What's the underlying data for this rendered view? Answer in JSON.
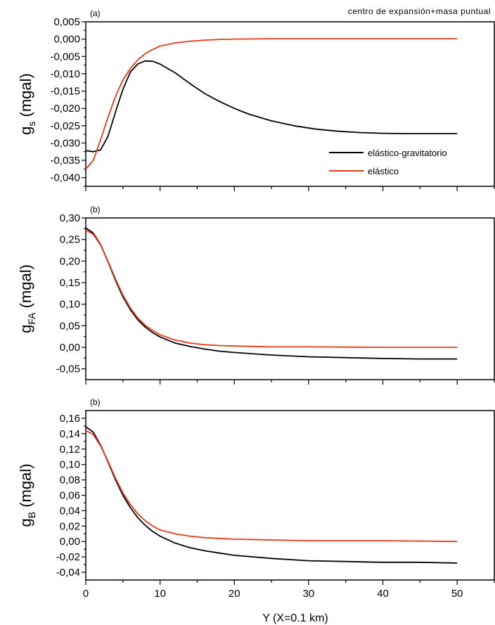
{
  "figure": {
    "annotation": "centro de expansión+masa puntual",
    "xlabel": "Y (X=0.1 km)"
  },
  "colors": {
    "elastico_gravitatorio": "#000000",
    "elastico": "#e8391a"
  },
  "chart_data": [
    {
      "type": "line",
      "panel_label": "(a)",
      "ylabel_main": "g",
      "ylabel_sub": "s",
      "ylabel_unit": " (mgal)",
      "xlim": [
        0,
        55
      ],
      "ylim": [
        -0.0425,
        0.005
      ],
      "x_ticks": [
        0,
        10,
        20,
        30,
        40,
        50
      ],
      "y_ticks": [
        -0.04,
        -0.035,
        -0.03,
        -0.025,
        -0.02,
        -0.015,
        -0.01,
        -0.005,
        0,
        0.005
      ],
      "y_tick_labels": [
        "-0,040",
        "-0,035",
        "-0,030",
        "-0,025",
        "-0,020",
        "-0,015",
        "-0,010",
        "-0,005",
        "0,000",
        "0,005"
      ],
      "legend": {
        "position": "bottom-right",
        "entries": [
          "elástico-gravitatorio",
          "elástico"
        ]
      },
      "series": [
        {
          "name": "elástico-gravitatorio",
          "color": "#000000",
          "x": [
            0,
            1,
            2,
            3,
            4,
            5,
            6,
            7,
            8,
            9,
            10,
            12,
            14,
            16,
            18,
            20,
            22,
            25,
            28,
            31,
            34,
            37,
            40,
            43,
            46,
            50
          ],
          "y": [
            -0.0322,
            -0.0325,
            -0.032,
            -0.028,
            -0.021,
            -0.0145,
            -0.0095,
            -0.0072,
            -0.0063,
            -0.0064,
            -0.0072,
            -0.0097,
            -0.0128,
            -0.0157,
            -0.018,
            -0.02,
            -0.0217,
            -0.0236,
            -0.025,
            -0.026,
            -0.0266,
            -0.027,
            -0.0272,
            -0.0273,
            -0.0273,
            -0.0273
          ]
        },
        {
          "name": "elástico",
          "color": "#e8391a",
          "x": [
            0,
            1,
            2,
            3,
            4,
            5,
            6,
            7,
            8,
            9,
            10,
            12,
            14,
            16,
            18,
            20,
            25,
            30,
            40,
            50
          ],
          "y": [
            -0.0375,
            -0.035,
            -0.029,
            -0.0225,
            -0.0165,
            -0.0118,
            -0.0085,
            -0.006,
            -0.0042,
            -0.003,
            -0.002,
            -0.0011,
            -0.0006,
            -0.0003,
            -0.0001,
            0,
            0.0001,
            0.0001,
            0.0001,
            0.0001
          ]
        }
      ]
    },
    {
      "type": "line",
      "panel_label": "(b)",
      "ylabel_main": "g",
      "ylabel_sub": "FA",
      "ylabel_unit": " (mgal)",
      "xlim": [
        0,
        55
      ],
      "ylim": [
        -0.075,
        0.3
      ],
      "x_ticks": [
        0,
        10,
        20,
        30,
        40,
        50
      ],
      "y_ticks": [
        -0.05,
        0,
        0.05,
        0.1,
        0.15,
        0.2,
        0.25,
        0.3
      ],
      "y_tick_labels": [
        "-0,05",
        "0,00",
        "0,05",
        "0,10",
        "0,15",
        "0,20",
        "0,25",
        "0,30"
      ],
      "series": [
        {
          "name": "elástico-gravitatorio",
          "color": "#000000",
          "x": [
            0,
            1,
            2,
            3,
            4,
            5,
            6,
            7,
            8,
            9,
            10,
            12,
            14,
            16,
            18,
            20,
            25,
            30,
            35,
            40,
            45,
            50
          ],
          "y": [
            0.277,
            0.265,
            0.238,
            0.198,
            0.155,
            0.117,
            0.087,
            0.064,
            0.047,
            0.034,
            0.024,
            0.01,
            0.002,
            -0.004,
            -0.009,
            -0.012,
            -0.018,
            -0.022,
            -0.024,
            -0.026,
            -0.027,
            -0.027
          ]
        },
        {
          "name": "elástico",
          "color": "#e8391a",
          "x": [
            0,
            1,
            2,
            3,
            4,
            5,
            6,
            7,
            8,
            9,
            10,
            12,
            14,
            16,
            18,
            20,
            25,
            30,
            40,
            50
          ],
          "y": [
            0.272,
            0.262,
            0.237,
            0.199,
            0.158,
            0.121,
            0.091,
            0.068,
            0.051,
            0.039,
            0.029,
            0.017,
            0.01,
            0.006,
            0.004,
            0.003,
            0.001,
            0.001,
            0,
            0
          ]
        }
      ]
    },
    {
      "type": "line",
      "panel_label": "(b)",
      "ylabel_main": "g",
      "ylabel_sub": "B",
      "ylabel_unit": " (mgal)",
      "xlim": [
        0,
        55
      ],
      "ylim": [
        -0.05,
        0.17
      ],
      "x_ticks": [
        0,
        10,
        20,
        30,
        40,
        50
      ],
      "y_ticks": [
        -0.04,
        -0.02,
        0,
        0.02,
        0.04,
        0.06,
        0.08,
        0.1,
        0.12,
        0.14,
        0.16
      ],
      "y_tick_labels": [
        "-0,04",
        "-0,02",
        "0,00",
        "0,02",
        "0,04",
        "0,06",
        "0,08",
        "0,10",
        "0,12",
        "0,14",
        "0,16"
      ],
      "x_tick_labels": [
        "0",
        "10",
        "20",
        "30",
        "40",
        "50"
      ],
      "series": [
        {
          "name": "elástico-gravitatorio",
          "color": "#000000",
          "x": [
            0,
            1,
            2,
            3,
            4,
            5,
            6,
            7,
            8,
            9,
            10,
            12,
            14,
            16,
            18,
            20,
            25,
            30,
            35,
            40,
            45,
            50
          ],
          "y": [
            0.149,
            0.142,
            0.125,
            0.103,
            0.08,
            0.06,
            0.044,
            0.031,
            0.021,
            0.013,
            0.007,
            -0.002,
            -0.008,
            -0.012,
            -0.015,
            -0.018,
            -0.022,
            -0.025,
            -0.026,
            -0.027,
            -0.027,
            -0.028
          ]
        },
        {
          "name": "elástico",
          "color": "#e8391a",
          "x": [
            0,
            1,
            2,
            3,
            4,
            5,
            6,
            7,
            8,
            9,
            10,
            12,
            14,
            16,
            18,
            20,
            25,
            30,
            40,
            50
          ],
          "y": [
            0.144,
            0.139,
            0.124,
            0.104,
            0.082,
            0.063,
            0.048,
            0.036,
            0.027,
            0.02,
            0.015,
            0.01,
            0.007,
            0.005,
            0.004,
            0.003,
            0.002,
            0.001,
            0.001,
            0
          ]
        }
      ]
    }
  ]
}
